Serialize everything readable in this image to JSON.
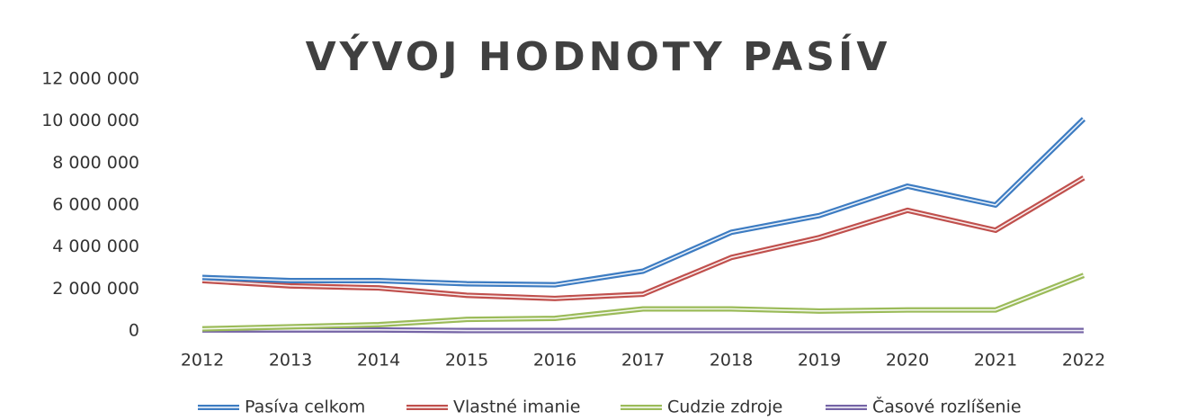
{
  "chart_data": {
    "type": "line",
    "title": "VÝVOJ HODNOTY PASÍV",
    "categories": [
      "2012",
      "2013",
      "2014",
      "2015",
      "2016",
      "2017",
      "2018",
      "2019",
      "2020",
      "2021",
      "2022"
    ],
    "series": [
      {
        "name": "Pasíva celkom",
        "color": "#3d7cc2",
        "values": [
          2550000,
          2400000,
          2400000,
          2250000,
          2200000,
          2850000,
          4700000,
          5500000,
          6900000,
          6000000,
          10100000
        ]
      },
      {
        "name": "Vlastné imanie",
        "color": "#c0504d",
        "values": [
          2400000,
          2150000,
          2050000,
          1700000,
          1550000,
          1750000,
          3500000,
          4450000,
          5750000,
          4800000,
          7300000
        ]
      },
      {
        "name": "Cudzie zdroje",
        "color": "#9bbb59",
        "values": [
          100000,
          200000,
          300000,
          550000,
          600000,
          1050000,
          1050000,
          950000,
          1000000,
          1000000,
          2650000
        ]
      },
      {
        "name": "Časové rozlíšenie",
        "color": "#7564a6",
        "values": [
          50000,
          50000,
          50000,
          20000,
          20000,
          20000,
          20000,
          20000,
          20000,
          20000,
          20000
        ]
      }
    ],
    "ylim": [
      0,
      12000000
    ],
    "yticks": [
      0,
      {
        "value": 2000000,
        "label": "2 000 000"
      },
      {
        "value": 4000000,
        "label": "4 000 000"
      },
      {
        "value": 6000000,
        "label": "6 000 000"
      },
      {
        "value": 8000000,
        "label": "8 000 000"
      },
      {
        "value": 10000000,
        "label": "10 000 000"
      },
      {
        "value": 12000000,
        "label": "12 000 000"
      }
    ],
    "grid": false
  }
}
